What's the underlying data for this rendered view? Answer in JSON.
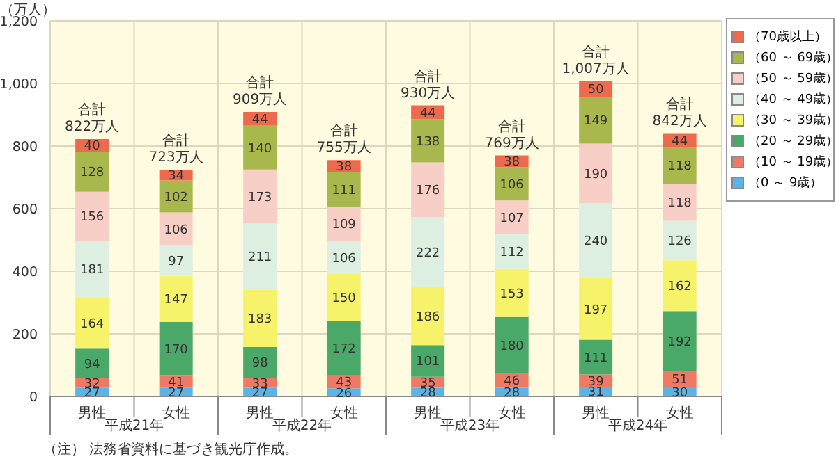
{
  "chart_data": {
    "type": "bar",
    "stacked": true,
    "ylabel": "（万人）",
    "categories": [
      "男性",
      "女性",
      "男性",
      "女性",
      "男性",
      "女性",
      "男性",
      "女性"
    ],
    "series": [
      {
        "name": "（0 ～ 9歳）",
        "color": "#5ab4e6",
        "values": [
          27,
          27,
          27,
          26,
          28,
          28,
          31,
          30
        ]
      },
      {
        "name": "（10 ～ 19歳）",
        "color": "#ee7a66",
        "values": [
          32,
          41,
          33,
          43,
          35,
          46,
          39,
          51
        ]
      },
      {
        "name": "（20 ～ 29歳）",
        "color": "#4aa868",
        "values": [
          94,
          170,
          98,
          172,
          101,
          180,
          111,
          192
        ]
      },
      {
        "name": "（30 ～ 39歳）",
        "color": "#f6f26a",
        "values": [
          164,
          147,
          183,
          150,
          186,
          153,
          197,
          162
        ]
      },
      {
        "name": "（40 ～ 49歳）",
        "color": "#dcefe0",
        "values": [
          181,
          97,
          211,
          106,
          222,
          112,
          240,
          126
        ]
      },
      {
        "name": "（50 ～ 59歳）",
        "color": "#f8cfc6",
        "values": [
          156,
          106,
          173,
          109,
          176,
          107,
          190,
          118
        ]
      },
      {
        "name": "（60 ～ 69歳）",
        "color": "#a9b84c",
        "values": [
          128,
          102,
          140,
          111,
          138,
          106,
          149,
          118
        ]
      },
      {
        "name": "（70歳以上）",
        "color": "#ee6a4e",
        "values": [
          40,
          34,
          44,
          38,
          44,
          38,
          50,
          44
        ]
      }
    ],
    "data_labels": true,
    "totals": [
      "合計\n822万人",
      "合計\n723万人",
      "合計\n909万人",
      "合計\n755万人",
      "合計\n930万人",
      "合計\n769万人",
      "合計\n1,007万人",
      "合計\n842万人"
    ],
    "ylim": [
      0,
      1200
    ],
    "yticks": [
      0,
      200,
      400,
      600,
      800,
      {
        "value": 1000,
        "label": "1,000"
      },
      {
        "value": 1200,
        "label": "1,200"
      }
    ],
    "grid": true,
    "legend": "right",
    "annotations": [
      "平成21年",
      "平成22年",
      "平成23年",
      "平成24年",
      "（注） 法務省資料に基づき観光庁作成。"
    ]
  }
}
